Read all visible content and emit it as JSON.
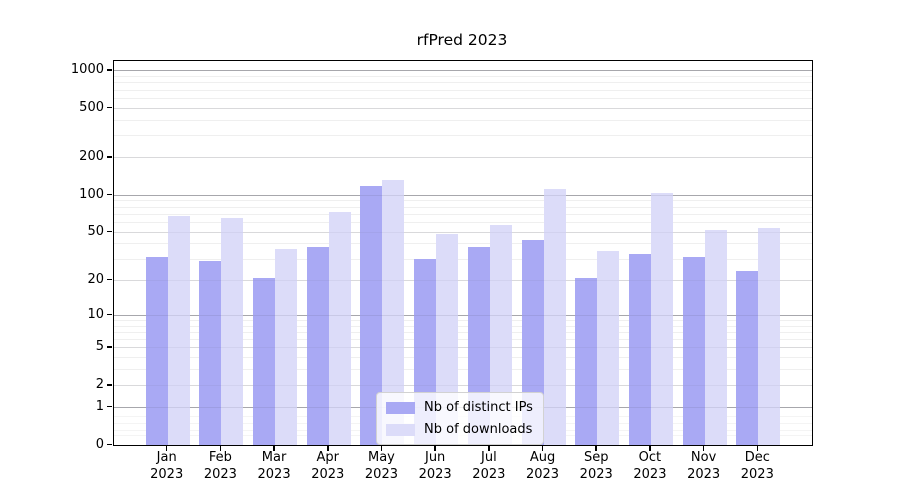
{
  "chart_data": {
    "type": "bar",
    "title": "rfPred 2023",
    "xlabel": "",
    "ylabel": "",
    "yscale": "log1p-symlog",
    "ylim": [
      0,
      1200
    ],
    "yticks": [
      1000,
      500,
      200,
      100,
      50,
      20,
      10,
      5,
      2,
      1,
      0
    ],
    "grid": "horizontal major and minor gridlines",
    "legend_position": "lower center inside plot",
    "categories": [
      "Jan 2023",
      "Feb 2023",
      "Mar 2023",
      "Apr 2023",
      "May 2023",
      "Jun 2023",
      "Jul 2023",
      "Aug 2023",
      "Sep 2023",
      "Oct 2023",
      "Nov 2023",
      "Dec 2023"
    ],
    "series": [
      {
        "name": "Nb of distinct IPs",
        "color": "#a9a9f4",
        "values": [
          31,
          29,
          21,
          38,
          119,
          30,
          38,
          43,
          21,
          33,
          31,
          24
        ]
      },
      {
        "name": "Nb of downloads",
        "color": "#dcdcf9",
        "values": [
          68,
          65,
          36,
          73,
          133,
          48,
          57,
          113,
          35,
          103,
          52,
          54
        ]
      }
    ],
    "gridline_values": {
      "major": [
        1,
        10,
        100,
        1000
      ],
      "mid": [
        2,
        5,
        20,
        50,
        200,
        500
      ],
      "minor": [
        3,
        4,
        6,
        7,
        8,
        9,
        30,
        40,
        60,
        70,
        80,
        90,
        300,
        400,
        600,
        700,
        800,
        900
      ],
      "sub": [
        0.2,
        0.3,
        0.5,
        0.7
      ]
    }
  },
  "colors": {
    "axis_spine": "#000000",
    "major_grid": "#b5b5b5",
    "mid_grid": "#e3e3e3",
    "minor_grid": "#efefef",
    "legend_border": "#d2d2d2",
    "legend_background": "rgba(255,255,255,0.8)"
  }
}
